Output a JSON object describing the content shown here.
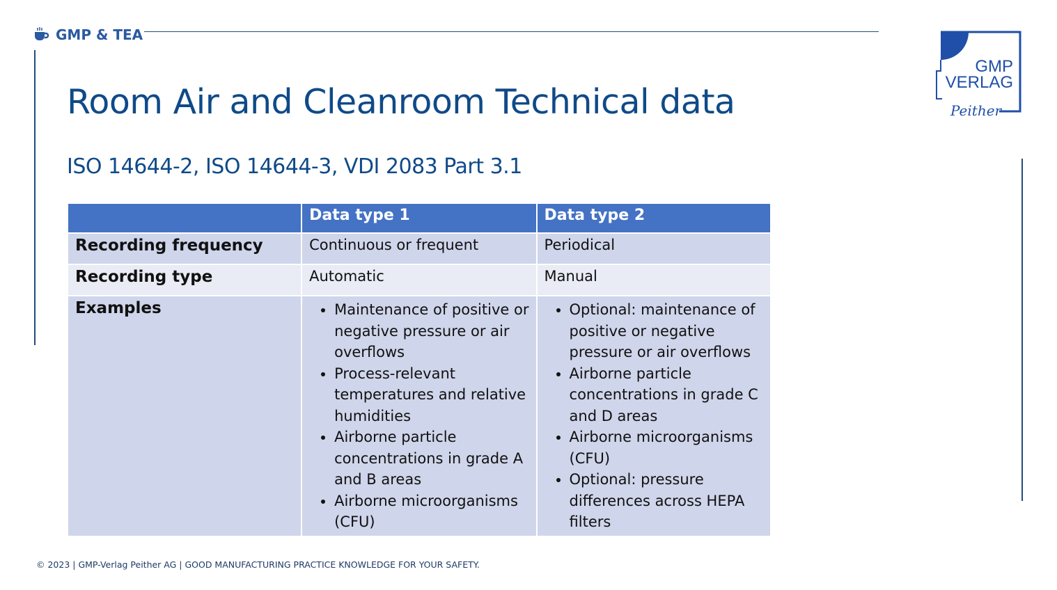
{
  "header": {
    "brand": "GMP & TEA",
    "brand_icon": "tea-cup-icon"
  },
  "title": "Room Air and Cleanroom Technical data",
  "subtitle": "ISO 14644-2, ISO 14644-3, VDI 2083 Part 3.1",
  "logo": {
    "text_line1": "GMP",
    "text_line2": "VERLAG",
    "signature": "Peither"
  },
  "table": {
    "headers": [
      "",
      "Data type 1",
      "Data type 2"
    ],
    "rows": [
      {
        "label": "Recording frequency",
        "c1": "Continuous or frequent",
        "c2": "Periodical"
      },
      {
        "label": "Recording type",
        "c1": "Automatic",
        "c2": "Manual"
      },
      {
        "label": "Examples",
        "c1": [
          "Maintenance of positive or negative pressure or air overflows",
          "Process-relevant temperatures and relative humidities",
          "Airborne particle concentrations in grade A and B areas",
          "Airborne microorganisms (CFU)"
        ],
        "c2": [
          "Optional: maintenance of positive or negative pressure or air overflows",
          "Airborne particle concentrations in grade C and D areas",
          "Airborne microorganisms (CFU)",
          "Optional: pressure differences across HEPA filters"
        ]
      }
    ]
  },
  "footer": "© 2023 | GMP-Verlag Peither AG | GOOD MANUFACTURING PRACTICE KNOWLEDGE FOR YOUR SAFETY.",
  "colors": {
    "accent": "#4472c4",
    "title": "#0f4a88",
    "row_dark": "#cfd5ea",
    "row_light": "#e9ebf5"
  }
}
